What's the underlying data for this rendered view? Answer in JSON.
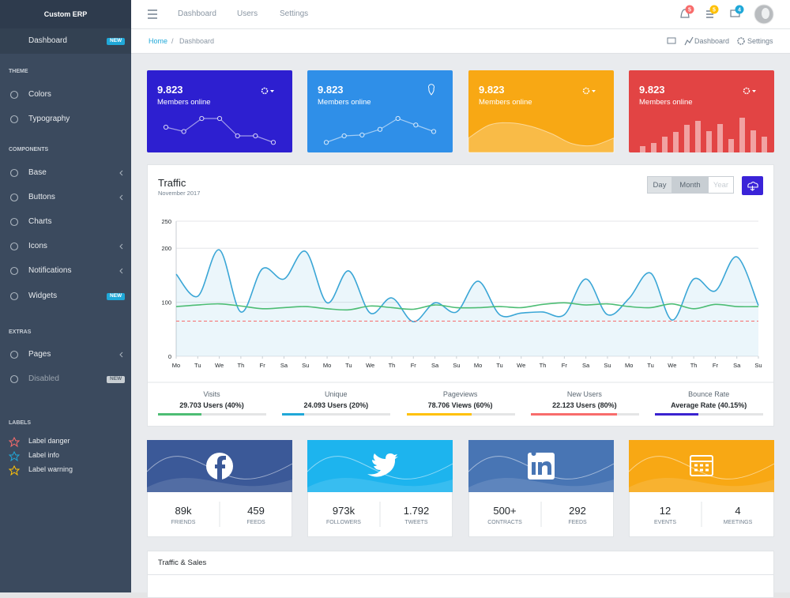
{
  "header": {
    "brand": "Custom ERP",
    "nav": [
      "Dashboard",
      "Users",
      "Settings"
    ],
    "badges": [
      {
        "value": 5,
        "color": "#f86c6b"
      },
      {
        "value": 5,
        "color": "#ffc107"
      },
      {
        "value": 4,
        "color": "#20a8d8"
      }
    ]
  },
  "breadcrumb": {
    "items": [
      "Home",
      "Dashboard"
    ],
    "separator": "/",
    "actions": [
      "Dashboard",
      "Settings"
    ]
  },
  "sidebar": {
    "items": [
      {
        "label": "Dashboard",
        "badge": "NEW",
        "active": true
      },
      {
        "heading": "THEME"
      },
      {
        "label": "Colors"
      },
      {
        "label": "Typography"
      },
      {
        "heading": "COMPONENTS"
      },
      {
        "label": "Base",
        "submenu": true
      },
      {
        "label": "Buttons",
        "submenu": true
      },
      {
        "label": "Charts"
      },
      {
        "label": "Icons",
        "submenu": true
      },
      {
        "label": "Notifications",
        "submenu": true
      },
      {
        "label": "Widgets",
        "badge": "NEW"
      },
      {
        "heading": "EXTRAS"
      },
      {
        "label": "Pages",
        "submenu": true
      },
      {
        "label": "Disabled",
        "badge": "NEW",
        "disabled": true
      },
      {
        "heading": "LABELS"
      },
      {
        "label": "Label danger",
        "icon_color": "#f86c6b"
      },
      {
        "label": "Label info",
        "icon_color": "#20a8d8"
      },
      {
        "label": "Label warning",
        "icon_color": "#ffc107"
      }
    ]
  },
  "stat_cards": [
    {
      "value": "9.823",
      "label": "Members online",
      "color": "#2d1fd0",
      "icon": "gear",
      "spark_type": "points",
      "spark": [
        60,
        50,
        80,
        80,
        40,
        40,
        25
      ]
    },
    {
      "value": "9.823",
      "label": "Members online",
      "color": "#2f8fe8",
      "icon": "pin",
      "spark_type": "points",
      "spark": [
        25,
        40,
        42,
        55,
        80,
        65,
        50
      ]
    },
    {
      "value": "9.823",
      "label": "Members online",
      "color": "#f8a814",
      "icon": "gear",
      "spark_type": "area",
      "spark": [
        35,
        65,
        70,
        62,
        45,
        22,
        18,
        35
      ]
    },
    {
      "value": "9.823",
      "label": "Members online",
      "color": "#e24444",
      "icon": "gear",
      "spark_type": "bars",
      "spark": [
        8,
        12,
        20,
        26,
        35,
        40,
        27,
        36,
        17,
        44,
        28,
        20
      ]
    }
  ],
  "chart_data": {
    "type": "line",
    "title": "Traffic",
    "subtitle": "November 2017",
    "buttons": [
      "Day",
      "Month",
      "Year"
    ],
    "active_button": 1,
    "categories": [
      "Mo",
      "Tu",
      "We",
      "Th",
      "Fr",
      "Sa",
      "Su",
      "Mo",
      "Tu",
      "We",
      "Th",
      "Fr",
      "Sa",
      "Su",
      "Mo",
      "Tu",
      "We",
      "Th",
      "Fr",
      "Sa",
      "Su",
      "Mo",
      "Tu",
      "We",
      "Th",
      "Fr",
      "Sa",
      "Su"
    ],
    "series": [
      {
        "color": "#3aa6d6",
        "fill": true,
        "values": [
          152,
          111,
          197,
          82,
          162,
          143,
          194,
          99,
          158,
          80,
          108,
          64,
          99,
          82,
          139,
          77,
          80,
          82,
          77,
          143,
          77,
          107,
          154,
          67,
          143,
          121,
          184,
          94
        ]
      },
      {
        "color": "#4dbd74",
        "values": [
          92,
          95,
          97,
          93,
          88,
          90,
          92,
          88,
          86,
          93,
          90,
          87,
          95,
          90,
          90,
          92,
          90,
          96,
          99,
          95,
          97,
          92,
          90,
          97,
          88,
          96,
          92,
          92
        ]
      },
      {
        "color": "#f86c6b",
        "dashed": true,
        "values": [
          65,
          65,
          65,
          65,
          65,
          65,
          65,
          65,
          65,
          65,
          65,
          65,
          65,
          65,
          65,
          65,
          65,
          65,
          65,
          65,
          65,
          65,
          65,
          65,
          65,
          65,
          65,
          65
        ]
      }
    ],
    "ylim": [
      0,
      250
    ],
    "yticks": [
      0,
      100,
      200,
      250
    ],
    "grid": true
  },
  "traffic_stats": [
    {
      "label": "Visits",
      "text": "29.703 Users (40%)",
      "percent": 40,
      "color": "#4dbd74"
    },
    {
      "label": "Unique",
      "text": "24.093 Users (20%)",
      "percent": 20,
      "color": "#20a8d8"
    },
    {
      "label": "Pageviews",
      "text": "78.706 Views (60%)",
      "percent": 60,
      "color": "#ffc107"
    },
    {
      "label": "New Users",
      "text": "22.123 Users (80%)",
      "percent": 80,
      "color": "#f86c6b"
    },
    {
      "label": "Bounce Rate",
      "text": "Average Rate (40.15%)",
      "percent": 40.15,
      "color": "#3a23d0"
    }
  ],
  "social_cards": [
    {
      "network": "facebook",
      "color": "#3b5998",
      "stats": [
        {
          "value": "89k",
          "label": "FRIENDS"
        },
        {
          "value": "459",
          "label": "FEEDS"
        }
      ]
    },
    {
      "network": "twitter",
      "color": "#1db4ee",
      "stats": [
        {
          "value": "973k",
          "label": "FOLLOWERS"
        },
        {
          "value": "1.792",
          "label": "TWEETS"
        }
      ]
    },
    {
      "network": "linkedin",
      "color": "#4875b4",
      "stats": [
        {
          "value": "500+",
          "label": "CONTRACTS"
        },
        {
          "value": "292",
          "label": "FEEDS"
        }
      ]
    },
    {
      "network": "calendar",
      "color": "#f8a814",
      "stats": [
        {
          "value": "12",
          "label": "EVENTS"
        },
        {
          "value": "4",
          "label": "MEETINGS"
        }
      ]
    }
  ],
  "panels": {
    "traffic_sales": "Traffic & Sales"
  }
}
